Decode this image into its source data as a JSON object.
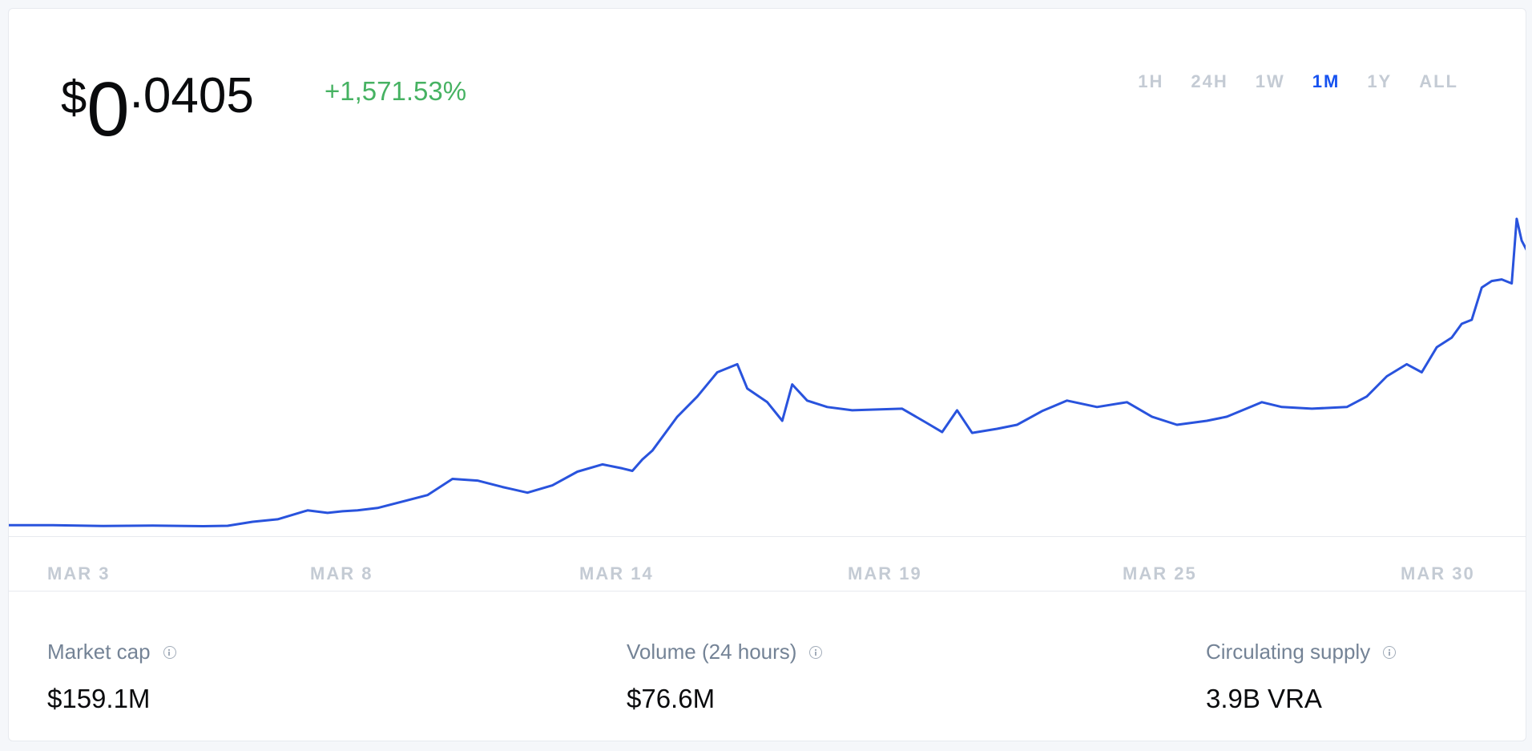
{
  "price": {
    "currency": "$",
    "integer": "0",
    "dot": ".",
    "decimals": "0405"
  },
  "change": "+1,571.53%",
  "ranges": [
    {
      "label": "1H",
      "active": false
    },
    {
      "label": "24H",
      "active": false
    },
    {
      "label": "1W",
      "active": false
    },
    {
      "label": "1M",
      "active": true
    },
    {
      "label": "1Y",
      "active": false
    },
    {
      "label": "ALL",
      "active": false
    }
  ],
  "colors": {
    "line": "#2953dd",
    "accent": "#1652f0",
    "positive": "#46b262"
  },
  "chart_data": {
    "type": "line",
    "x_tick_labels": [
      "MAR 3",
      "MAR 8",
      "MAR 14",
      "MAR 19",
      "MAR 25",
      "MAR 30"
    ],
    "x_tick_days": [
      3,
      8,
      14,
      19,
      25,
      30
    ],
    "x_range_days": [
      1.62,
      32.01
    ],
    "y_range": [
      0.0024,
      0.0405
    ],
    "grid": false,
    "series": [
      {
        "values": [
          [
            1.62,
            0.00257
          ],
          [
            2.5,
            0.00258
          ],
          [
            3.5,
            0.00248
          ],
          [
            4.5,
            0.00252
          ],
          [
            5.5,
            0.00245
          ],
          [
            6.0,
            0.0025
          ],
          [
            6.5,
            0.003
          ],
          [
            7.0,
            0.0033
          ],
          [
            7.6,
            0.0044
          ],
          [
            8.0,
            0.0041
          ],
          [
            8.3,
            0.0043
          ],
          [
            8.6,
            0.0044
          ],
          [
            9.0,
            0.0047
          ],
          [
            10.0,
            0.0063
          ],
          [
            10.5,
            0.0083
          ],
          [
            11.0,
            0.0081
          ],
          [
            11.5,
            0.0073
          ],
          [
            12.0,
            0.0066
          ],
          [
            12.5,
            0.0075
          ],
          [
            13.0,
            0.0092
          ],
          [
            13.5,
            0.0101
          ],
          [
            13.9,
            0.0096
          ],
          [
            14.1,
            0.0093
          ],
          [
            14.3,
            0.0107
          ],
          [
            14.5,
            0.0118
          ],
          [
            15.0,
            0.016
          ],
          [
            15.4,
            0.0185
          ],
          [
            15.8,
            0.0215
          ],
          [
            16.2,
            0.0225
          ],
          [
            16.4,
            0.0195
          ],
          [
            16.8,
            0.0178
          ],
          [
            17.1,
            0.0155
          ],
          [
            17.3,
            0.02
          ],
          [
            17.6,
            0.018
          ],
          [
            18.0,
            0.0172
          ],
          [
            18.5,
            0.0168
          ],
          [
            19.5,
            0.017
          ],
          [
            20.0,
            0.0152
          ],
          [
            20.3,
            0.0141
          ],
          [
            20.6,
            0.0168
          ],
          [
            20.9,
            0.014
          ],
          [
            21.4,
            0.0145
          ],
          [
            21.8,
            0.015
          ],
          [
            22.3,
            0.0167
          ],
          [
            22.8,
            0.018
          ],
          [
            23.4,
            0.0172
          ],
          [
            24.0,
            0.0178
          ],
          [
            24.5,
            0.016
          ],
          [
            25.0,
            0.015
          ],
          [
            25.6,
            0.0155
          ],
          [
            26.0,
            0.016
          ],
          [
            26.7,
            0.0178
          ],
          [
            27.1,
            0.0172
          ],
          [
            27.7,
            0.017
          ],
          [
            28.4,
            0.0172
          ],
          [
            28.8,
            0.0185
          ],
          [
            29.2,
            0.021
          ],
          [
            29.6,
            0.0225
          ],
          [
            29.9,
            0.0215
          ],
          [
            30.2,
            0.0246
          ],
          [
            30.5,
            0.0258
          ],
          [
            30.7,
            0.0275
          ],
          [
            30.9,
            0.028
          ],
          [
            31.1,
            0.032
          ],
          [
            31.3,
            0.0328
          ],
          [
            31.5,
            0.033
          ],
          [
            31.7,
            0.0325
          ],
          [
            31.8,
            0.0405
          ],
          [
            31.9,
            0.0378
          ],
          [
            32.01,
            0.0365
          ]
        ]
      }
    ]
  },
  "stats": [
    {
      "label": "Market cap",
      "value": "$159.1M"
    },
    {
      "label": "Volume (24 hours)",
      "value": "$76.6M"
    },
    {
      "label": "Circulating supply",
      "value": "3.9B VRA"
    }
  ]
}
